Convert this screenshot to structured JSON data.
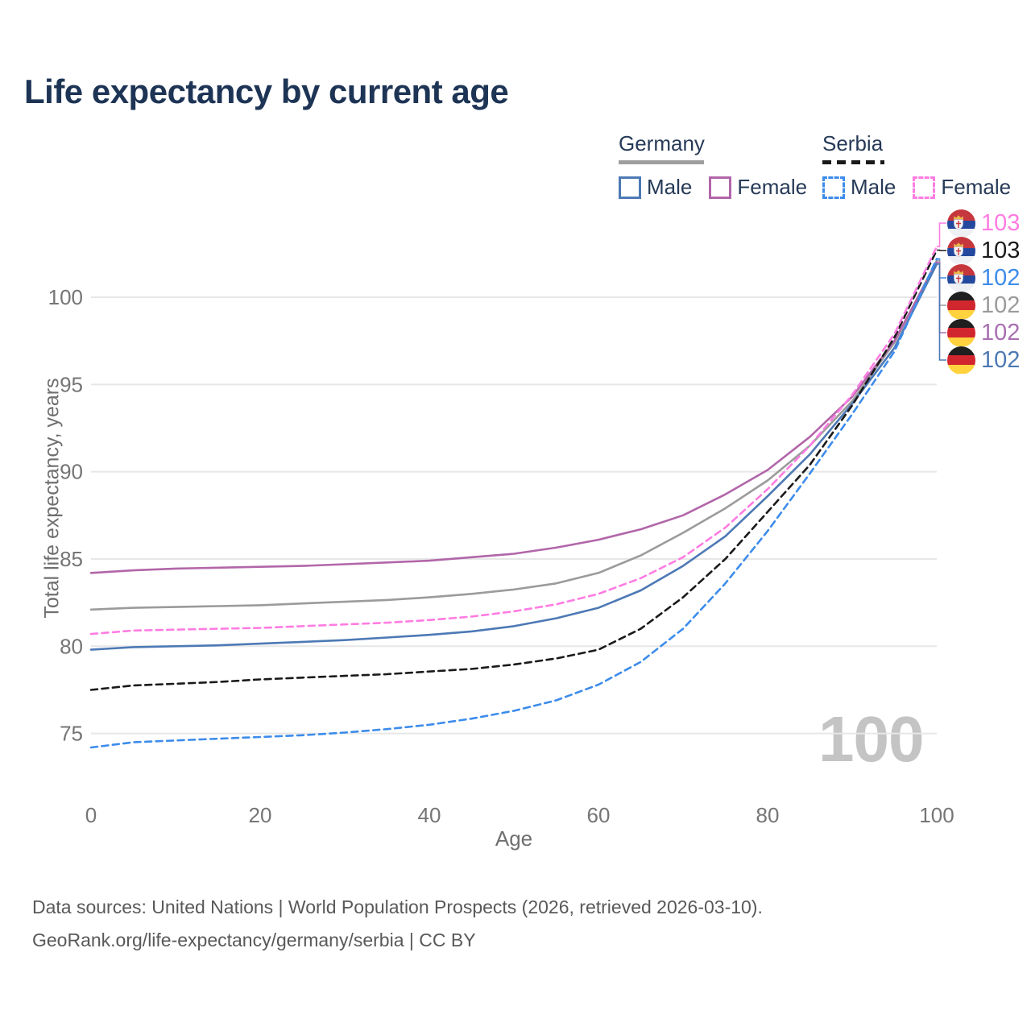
{
  "title": "Life expectancy by current age",
  "legend": {
    "groups": [
      {
        "name": "Germany",
        "underline_color": "#9e9e9e",
        "underline_style": "solid",
        "items": [
          {
            "label": "Male",
            "color": "#4d79b5",
            "dashed": false
          },
          {
            "label": "Female",
            "color": "#b266a9",
            "dashed": false
          }
        ]
      },
      {
        "name": "Serbia",
        "underline_color": "#1a1a1a",
        "underline_style": "dashed",
        "items": [
          {
            "label": "Male",
            "color": "#3d8ceb",
            "dashed": true
          },
          {
            "label": "Female",
            "color": "#ff7ce2",
            "dashed": true
          }
        ]
      }
    ]
  },
  "chart_data": {
    "type": "line",
    "title": "Life expectancy by current age",
    "xlabel": "Age",
    "ylabel": "Total life expectancy, years",
    "xticks": [
      0,
      20,
      40,
      60,
      80,
      100
    ],
    "yticks": [
      75,
      80,
      85,
      90,
      95,
      100
    ],
    "xlim": [
      0,
      100
    ],
    "ylim": [
      73.5,
      104.5
    ],
    "grid": "horizontal-only",
    "legend_position": "top-right",
    "ages": [
      0,
      5,
      10,
      15,
      20,
      25,
      30,
      35,
      40,
      45,
      50,
      55,
      60,
      65,
      70,
      75,
      80,
      85,
      90,
      95,
      100
    ],
    "series": [
      {
        "name": "Germany Both sexes",
        "country": "Germany",
        "sex": "Both sexes",
        "color": "#9b9b9b",
        "dashed": false,
        "values": [
          82.1,
          82.2,
          82.25,
          82.3,
          82.35,
          82.45,
          82.55,
          82.65,
          82.8,
          83.0,
          83.25,
          83.6,
          84.2,
          85.2,
          86.5,
          87.9,
          89.5,
          91.5,
          94.05,
          97.4,
          102.1
        ]
      },
      {
        "name": "Germany Female",
        "country": "Germany",
        "sex": "Female",
        "color": "#b266a9",
        "dashed": false,
        "values": [
          84.2,
          84.35,
          84.45,
          84.5,
          84.55,
          84.6,
          84.7,
          84.8,
          84.9,
          85.1,
          85.3,
          85.65,
          86.1,
          86.7,
          87.5,
          88.7,
          90.1,
          92.0,
          94.3,
          97.5,
          102.0
        ]
      },
      {
        "name": "Germany Male",
        "country": "Germany",
        "sex": "Male",
        "color": "#4d79b5",
        "dashed": false,
        "values": [
          79.8,
          79.95,
          80.0,
          80.05,
          80.15,
          80.25,
          80.35,
          80.5,
          80.65,
          80.85,
          81.15,
          81.6,
          82.2,
          83.2,
          84.6,
          86.3,
          88.6,
          91.0,
          93.9,
          97.1,
          101.9
        ]
      },
      {
        "name": "Serbia Both sexes",
        "country": "Serbia",
        "sex": "Both sexes",
        "color": "#1a1a1a",
        "dashed": true,
        "values": [
          77.5,
          77.75,
          77.85,
          77.95,
          78.1,
          78.2,
          78.3,
          78.4,
          78.55,
          78.7,
          78.95,
          79.3,
          79.8,
          81.0,
          82.8,
          85.0,
          87.7,
          90.4,
          93.8,
          97.7,
          102.7
        ]
      },
      {
        "name": "Serbia Female",
        "country": "Serbia",
        "sex": "Female",
        "color": "#ff7ce2",
        "dashed": true,
        "values": [
          80.7,
          80.9,
          80.95,
          81.0,
          81.05,
          81.15,
          81.25,
          81.35,
          81.5,
          81.7,
          82.0,
          82.4,
          83.0,
          83.9,
          85.1,
          86.8,
          89.0,
          91.5,
          94.4,
          97.9,
          102.9
        ]
      },
      {
        "name": "Serbia Male",
        "country": "Serbia",
        "sex": "Male",
        "color": "#3d8ceb",
        "dashed": true,
        "values": [
          74.2,
          74.5,
          74.6,
          74.7,
          74.8,
          74.9,
          75.05,
          75.25,
          75.5,
          75.85,
          76.3,
          76.9,
          77.8,
          79.1,
          81.0,
          83.6,
          86.6,
          89.9,
          93.3,
          96.9,
          102.2
        ]
      }
    ],
    "end_labels": [
      {
        "value": "103",
        "flag": "serbia",
        "color": "#ff7ce2",
        "series_index": 4
      },
      {
        "value": "103",
        "flag": "serbia",
        "color": "#1a1a1a",
        "series_index": 3
      },
      {
        "value": "102",
        "flag": "serbia",
        "color": "#3d8ceb",
        "series_index": 5
      },
      {
        "value": "102",
        "flag": "germany",
        "color": "#9b9b9b",
        "series_index": 0
      },
      {
        "value": "102",
        "flag": "germany",
        "color": "#a86fb0",
        "series_index": 1
      },
      {
        "value": "102",
        "flag": "germany",
        "color": "#4d79b5",
        "series_index": 2
      }
    ]
  },
  "watermark": "100",
  "footer": {
    "line1": "Data sources: United Nations | World Population Prospects (2026, retrieved 2026-03-10).",
    "line2": "GeoRank.org/life-expectancy/germany/serbia | CC BY"
  },
  "ui_colors": {
    "title": "#1d3455",
    "legend_text": "#263a57",
    "axis_text": "#757575",
    "grid": "#e7e7e7",
    "watermark": "#c4c4c4",
    "footer_text": "#595959",
    "serbia_flag": {
      "red": "#c6363d",
      "blue": "#24489e",
      "white": "#eef0f4",
      "crown": "#e9b949"
    },
    "germany_flag": {
      "black": "#1f1f1f",
      "red": "#d2262f",
      "gold": "#ffd23e"
    }
  }
}
